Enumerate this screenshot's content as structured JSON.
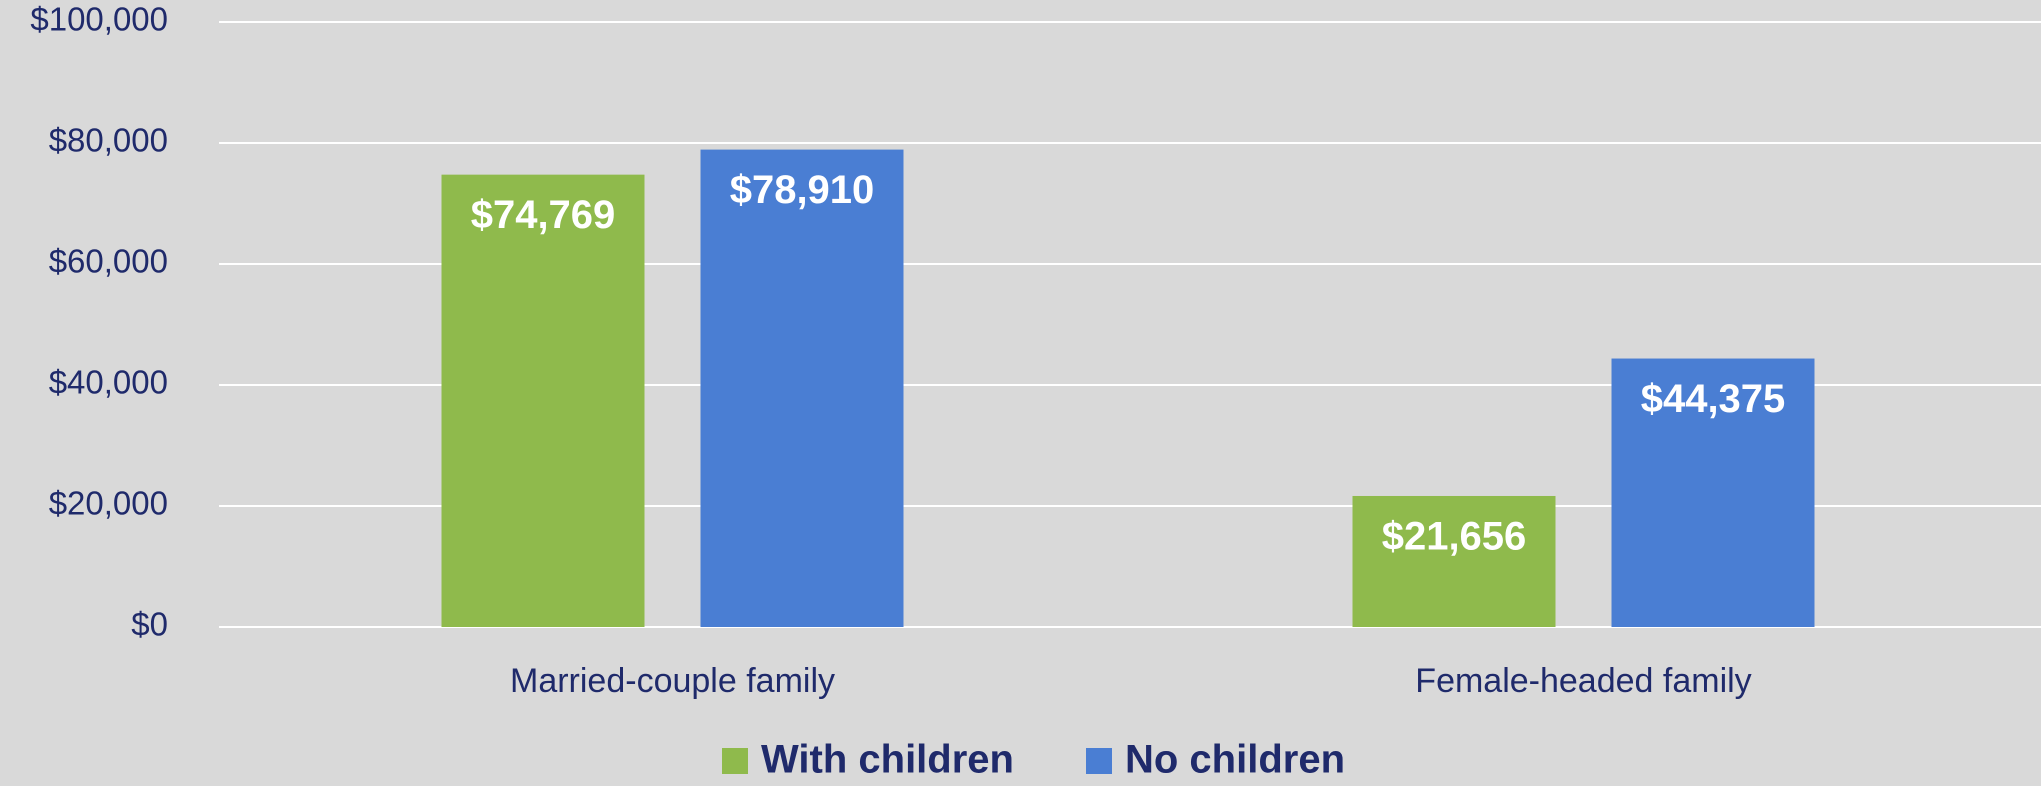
{
  "chart_data": {
    "type": "bar",
    "categories": [
      "Married-couple family",
      "Female-headed family"
    ],
    "series": [
      {
        "name": "With children",
        "color": "#8fba4c",
        "values": [
          74769,
          21656
        ],
        "value_labels": [
          "$74,769",
          "$21,656"
        ]
      },
      {
        "name": "No children",
        "color": "#4a7ed3",
        "values": [
          78910,
          44375
        ],
        "value_labels": [
          "$78,910",
          "$44,375"
        ]
      }
    ],
    "ylim": [
      0,
      100000
    ],
    "yticks": [
      {
        "value": 0,
        "label": "$0"
      },
      {
        "value": 20000,
        "label": "$20,000"
      },
      {
        "value": 40000,
        "label": "$40,000"
      },
      {
        "value": 60000,
        "label": "$60,000"
      },
      {
        "value": 80000,
        "label": "$80,000"
      },
      {
        "value": 100000,
        "label": "$100,000"
      }
    ],
    "grid": true,
    "legend": "bottom"
  }
}
